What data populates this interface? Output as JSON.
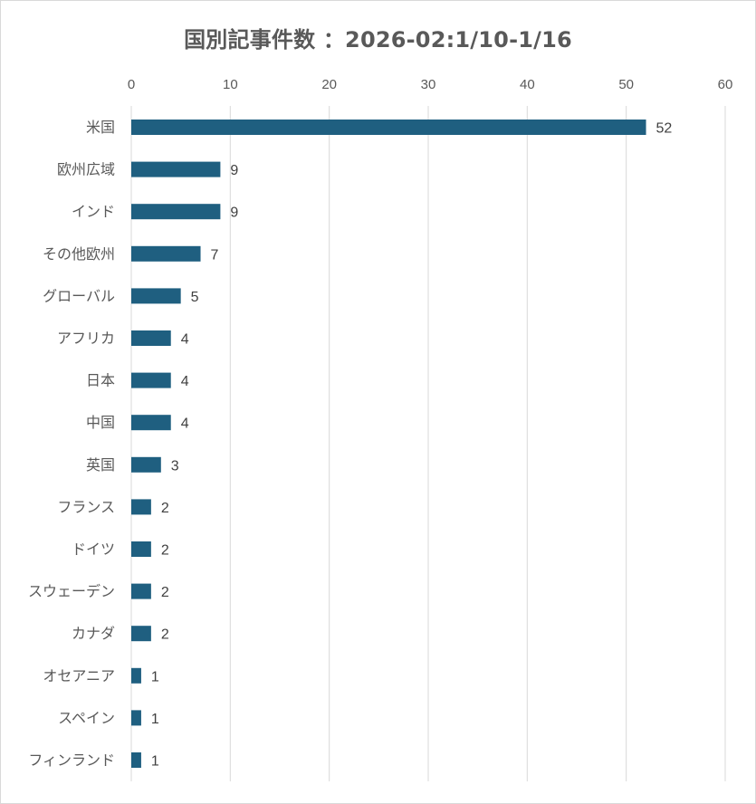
{
  "chart_data": {
    "type": "bar",
    "orientation": "horizontal",
    "title": "国別記事件数 ：2026-02:1/10-1/16",
    "categories": [
      "米国",
      "欧州広域",
      "インド",
      "その他欧州",
      "グローバル",
      "アフリカ",
      "日本",
      "中国",
      "英国",
      "フランス",
      "ドイツ",
      "スウェーデン",
      "カナダ",
      "オセアニア",
      "スペイン",
      "フィンランド"
    ],
    "values": [
      52,
      9,
      9,
      7,
      5,
      4,
      4,
      4,
      3,
      2,
      2,
      2,
      2,
      1,
      1,
      1
    ],
    "xlim": [
      0,
      60
    ],
    "x_ticks": [
      0,
      10,
      20,
      30,
      40,
      50,
      60
    ],
    "x_axis_position": "top",
    "grid": true,
    "legend": "none",
    "data_labels": true,
    "bar_color": "#1f5f80"
  }
}
